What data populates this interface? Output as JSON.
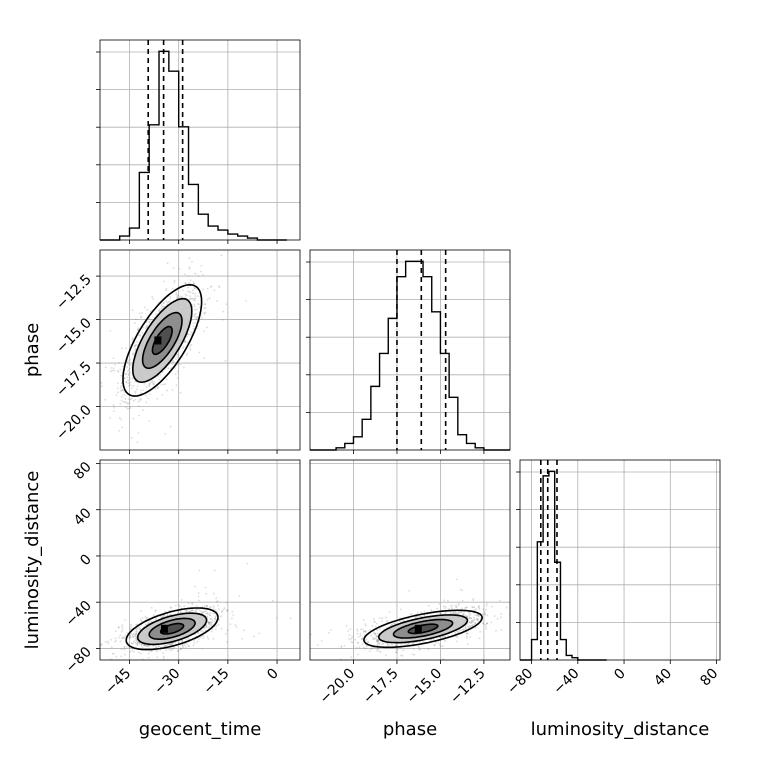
{
  "chart_data": {
    "type": "corner",
    "parameters": [
      "geocent_time",
      "phase",
      "luminosity_distance"
    ],
    "axes": {
      "geocent_time": {
        "label": "geocent_time",
        "range": [
          -54,
          7
        ],
        "ticks": [
          -45,
          -30,
          -15,
          0
        ],
        "tick_labels": [
          "−45",
          "−30",
          "−15",
          "0"
        ]
      },
      "phase": {
        "label": "phase",
        "range": [
          -22.5,
          -11.0
        ],
        "ticks": [
          -20.0,
          -17.5,
          -15.0,
          -12.5
        ],
        "tick_labels": [
          "−20.0",
          "−17.5",
          "−15.0",
          "−12.5"
        ]
      },
      "luminosity_distance": {
        "label": "luminosity_distance",
        "range": [
          -90,
          83
        ],
        "ticks": [
          -80,
          -40,
          0,
          40,
          80
        ],
        "tick_labels": [
          "−80",
          "−40",
          "0",
          "40",
          "80"
        ]
      }
    },
    "histograms": [
      {
        "parameter": "geocent_time",
        "bin_edges": [
          -54,
          -51,
          -48,
          -45,
          -42,
          -39,
          -36,
          -33,
          -30,
          -27,
          -24,
          -21,
          -18,
          -15,
          -12,
          -9,
          -6,
          -3,
          0,
          3
        ],
        "counts": [
          0,
          0,
          2,
          6,
          34,
          58,
          95,
          85,
          57,
          28,
          13,
          7,
          5,
          3,
          2,
          1,
          0,
          0,
          0
        ],
        "quantiles": [
          -39.3,
          -34.6,
          -28.8
        ]
      },
      {
        "parameter": "phase",
        "bin_edges": [
          -22.5,
          -22.0,
          -21.5,
          -21.0,
          -20.5,
          -20.0,
          -19.5,
          -19.0,
          -18.5,
          -18.0,
          -17.5,
          -17.0,
          -16.5,
          -16.0,
          -15.5,
          -15.0,
          -14.5,
          -14.0,
          -13.5,
          -13.0,
          -12.5,
          -12.0,
          -11.5,
          -11.0
        ],
        "counts": [
          0,
          0,
          0,
          1,
          3,
          6,
          14,
          29,
          44,
          60,
          79,
          86,
          86,
          79,
          63,
          44,
          24,
          7,
          3,
          1,
          0,
          0,
          0
        ],
        "quantiles": [
          -17.5,
          -16.1,
          -14.7
        ]
      },
      {
        "parameter": "luminosity_distance",
        "bin_edges": [
          -90,
          -85,
          -80,
          -75,
          -70,
          -65,
          -60,
          -55,
          -50,
          -45,
          -40,
          -35,
          -30,
          -25,
          -20,
          -15
        ],
        "counts": [
          0,
          0,
          9,
          52,
          81,
          83,
          43,
          9,
          2,
          1,
          0,
          0,
          0,
          0,
          0
        ],
        "quantiles": [
          -72,
          -66,
          -58
        ]
      }
    ],
    "scatter_2d": [
      {
        "x": "geocent_time",
        "y": "phase",
        "mean": [
          -35,
          -16.2
        ],
        "std": [
          6,
          1.6
        ],
        "correlation": 0.7,
        "peak": [
          -36.5,
          -16.2
        ],
        "contour_levels": [
          0.5,
          1.0,
          1.5,
          2.0
        ]
      },
      {
        "x": "geocent_time",
        "y": "luminosity_distance",
        "mean": [
          -32,
          -63
        ],
        "std": [
          7,
          9
        ],
        "correlation": 0.55,
        "peak": [
          -34.5,
          -63
        ],
        "contour_levels": [
          0.5,
          1.0,
          1.5,
          2.0
        ]
      },
      {
        "x": "phase",
        "y": "luminosity_distance",
        "mean": [
          -16.0,
          -63
        ],
        "std": [
          1.7,
          8
        ],
        "correlation": 0.6,
        "peak": [
          -16.3,
          -63
        ],
        "contour_levels": [
          0.5,
          1.0,
          1.5,
          2.0
        ]
      }
    ],
    "grid": true,
    "colors": {
      "line": "#000000",
      "grid": "#b0b0b0",
      "points": "#808080"
    }
  }
}
